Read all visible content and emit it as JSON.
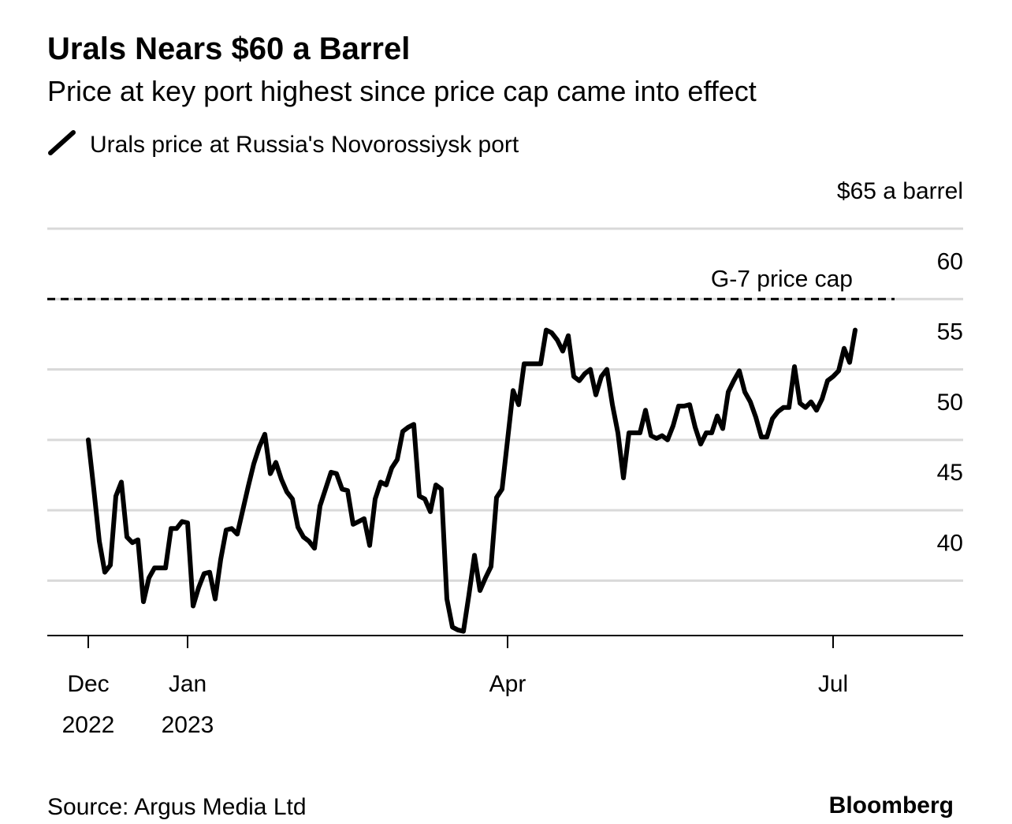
{
  "chart_data": {
    "type": "line",
    "title": "Urals Nears $60 a Barrel",
    "subtitle": "Price at key port highest since price cap came into effect",
    "source": "Source: Argus Media Ltd",
    "credit": "Bloomberg",
    "categories": [
      "Dec 2022",
      null,
      null,
      null,
      null,
      null,
      null,
      null,
      null,
      null,
      null,
      null,
      null,
      null,
      null,
      null,
      null,
      null,
      "Jan 2023",
      null,
      null,
      null,
      null,
      null,
      null,
      null,
      null,
      null,
      null,
      null,
      null,
      null,
      null,
      null,
      null,
      null,
      null,
      null,
      null,
      null,
      null,
      null,
      null,
      null,
      null,
      null,
      null,
      null,
      null,
      null,
      null,
      null,
      null,
      null,
      null,
      null,
      null,
      null,
      null,
      null,
      null,
      null,
      null,
      null,
      null,
      null,
      null,
      null,
      null,
      null,
      null,
      null,
      null,
      null,
      null,
      null,
      "Apr",
      null,
      null,
      null,
      null,
      null,
      null,
      null,
      null,
      null,
      null,
      null,
      null,
      null,
      null,
      null,
      null,
      null,
      null,
      null,
      null,
      null,
      null,
      null,
      null,
      null,
      null,
      null,
      null,
      null,
      null,
      null,
      null,
      null,
      null,
      null,
      null,
      null,
      null,
      null,
      null,
      null,
      null,
      null,
      null,
      null,
      null,
      null,
      null,
      null,
      null,
      null,
      null,
      null,
      null,
      null,
      null,
      null,
      null,
      "Jul",
      null,
      null,
      null,
      null
    ],
    "series": [
      {
        "name": "Urals price at Russia's Novorossiysk port",
        "color": "#000000",
        "values": [
          50.0,
          46.5,
          42.8,
          40.6,
          41.1,
          46.0,
          47.0,
          43.1,
          42.7,
          42.9,
          38.5,
          40.2,
          40.9,
          40.9,
          40.9,
          43.7,
          43.7,
          44.2,
          44.1,
          38.2,
          39.5,
          40.5,
          40.6,
          38.7,
          41.5,
          43.6,
          43.7,
          43.3,
          45.0,
          46.7,
          48.3,
          49.5,
          50.4,
          47.6,
          48.4,
          47.2,
          46.3,
          45.8,
          43.8,
          43.1,
          42.8,
          42.3,
          45.3,
          46.5,
          47.7,
          47.6,
          46.5,
          46.4,
          44.0,
          44.2,
          44.4,
          42.5,
          45.8,
          47.0,
          46.8,
          48.0,
          48.6,
          50.6,
          50.9,
          51.1,
          46.0,
          45.8,
          44.9,
          46.8,
          46.5,
          38.7,
          36.7,
          36.5,
          36.4,
          39.0,
          41.8,
          39.3,
          40.2,
          41.0,
          45.9,
          46.5,
          50.0,
          53.5,
          52.5,
          55.4,
          55.4,
          55.4,
          55.4,
          57.8,
          57.6,
          57.1,
          56.3,
          57.4,
          54.5,
          54.2,
          54.7,
          55.0,
          53.2,
          54.5,
          55.0,
          52.5,
          50.5,
          47.3,
          50.5,
          50.5,
          50.5,
          52.1,
          50.3,
          50.1,
          50.3,
          50.0,
          51.0,
          52.4,
          52.4,
          52.5,
          50.9,
          49.7,
          50.5,
          50.5,
          51.7,
          50.8,
          53.4,
          54.2,
          54.9,
          53.4,
          52.7,
          51.6,
          50.2,
          50.2,
          51.5,
          52.0,
          52.3,
          52.3,
          55.2,
          52.6,
          52.3,
          52.7,
          52.1,
          52.9,
          54.2,
          54.5,
          54.9,
          56.5,
          55.5,
          57.8
        ]
      }
    ],
    "ylim": [
      36.1,
      65
    ],
    "yticks": [
      40,
      45,
      50,
      55,
      60,
      {
        "value": 65,
        "label": "$65 a barrel"
      }
    ],
    "grid": true,
    "annotations": [
      {
        "text": "G-7 price cap",
        "value": 60
      }
    ]
  }
}
